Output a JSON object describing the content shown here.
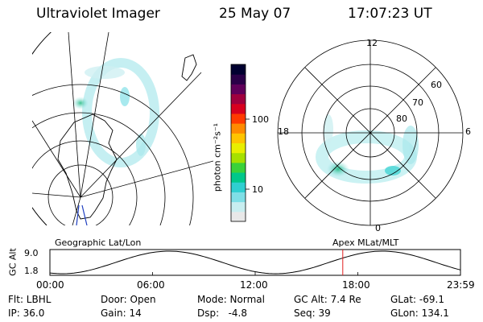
{
  "header": {
    "instrument": "Ultraviolet Imager",
    "date": "25 May 07",
    "time": "17:07:23 UT"
  },
  "colorbar": {
    "unit_label": "photon cm⁻²s⁻¹",
    "ticks": [
      "100",
      "10"
    ],
    "colors": [
      "#e8e8e8",
      "#c8eef0",
      "#7fdfe6",
      "#2fcfd0",
      "#00c88a",
      "#3ad23a",
      "#a6e000",
      "#e9ee00",
      "#ffc400",
      "#ff8a00",
      "#ff3a00",
      "#d8001e",
      "#a0003e",
      "#60005a",
      "#2a0048",
      "#000030"
    ]
  },
  "left_map": {
    "label": "Geographic Lat/Lon"
  },
  "right_map": {
    "label": "Apex MLat/MLT",
    "mlt_labels": {
      "top": "12",
      "left": "18",
      "right": "6",
      "bottom": "0"
    },
    "lat_labels": [
      "60",
      "70",
      "80"
    ]
  },
  "gc_alt_plot": {
    "ylabel": "GC Alt",
    "ymax": "9.0",
    "ymin": "1.8",
    "xticks": [
      "00:00",
      "06:00",
      "12:00",
      "18:00",
      "23:59"
    ],
    "marker_time_fraction": 0.7134
  },
  "status": {
    "flt": "Flt: LBHL",
    "ip": "IP: 36.0",
    "door": "Door: Open",
    "gain": "Gain: 14",
    "mode": "Mode: Normal",
    "dsp": "Dsp:   -4.8",
    "gc_alt": "GC Alt: 7.4 Re",
    "seq": "Seq: 39",
    "glat": "GLat: -69.1",
    "glon": "GLon: 134.1"
  },
  "colors": {
    "grid": "#000000",
    "marker": "#e02020",
    "meridian": "#2040c0",
    "aurora_dark": "#00b070",
    "aurora_light": "#7fdfe6"
  }
}
